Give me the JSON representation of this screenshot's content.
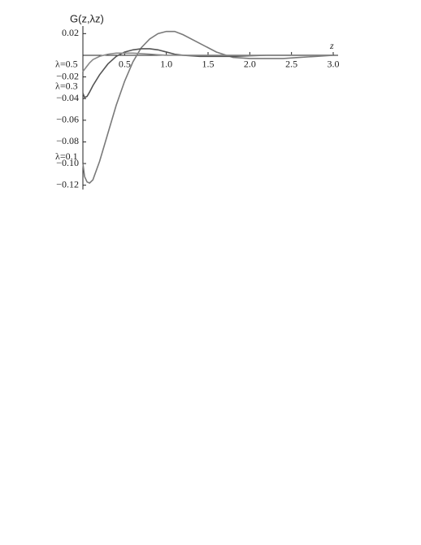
{
  "chart_data": {
    "type": "line",
    "y_label": "G(z,λz)",
    "x_label": "z",
    "x": [
      0,
      0.02,
      0.05,
      0.08,
      0.12,
      0.2,
      0.3,
      0.4,
      0.5,
      0.6,
      0.7,
      0.8,
      0.9,
      1.0,
      1.1,
      1.2,
      1.4,
      1.6,
      1.8,
      2.0,
      2.2,
      2.4,
      2.6,
      2.8,
      3.0
    ],
    "series": [
      {
        "name": "λ=0.1",
        "color": "#7a7a7a",
        "values": [
          -0.1,
          -0.112,
          -0.117,
          -0.118,
          -0.115,
          -0.098,
          -0.072,
          -0.046,
          -0.024,
          -0.006,
          0.007,
          0.015,
          0.02,
          0.022,
          0.022,
          0.019,
          0.011,
          0.003,
          -0.002,
          -0.003,
          -0.003,
          -0.003,
          -0.002,
          -0.001,
          0
        ]
      },
      {
        "name": "λ=0.3",
        "color": "#555555",
        "values": [
          -0.035,
          -0.039,
          -0.038,
          -0.034,
          -0.028,
          -0.018,
          -0.008,
          -0.001,
          0.003,
          0.005,
          0.006,
          0.006,
          0.005,
          0.003,
          0.001,
          0,
          -0.001,
          -0.001,
          -0.001,
          -0.0005,
          0,
          0,
          0,
          0,
          0
        ]
      },
      {
        "name": "λ=0.5",
        "color": "#8a8a8a",
        "values": [
          -0.015,
          -0.013,
          -0.01,
          -0.007,
          -0.004,
          -0.001,
          0.001,
          0.002,
          0.002,
          0.002,
          0.0015,
          0.001,
          0.0005,
          0,
          0,
          0,
          0,
          0,
          0,
          0,
          0,
          0,
          0,
          0,
          0
        ]
      }
    ],
    "xlim": [
      0,
      3
    ],
    "ylim": [
      -0.124,
      0.027
    ],
    "xticks": [
      0.5,
      {
        "value": 1,
        "label": "1.0"
      },
      1.5,
      {
        "value": 2,
        "label": "2.0"
      },
      2.5,
      {
        "value": 3,
        "label": "3.0"
      }
    ],
    "yticks": [
      0.02,
      {
        "value": -0.02,
        "label": "−0.02"
      },
      {
        "value": -0.04,
        "label": "−0.04"
      },
      {
        "value": -0.06,
        "label": "−0.06"
      },
      {
        "value": -0.08,
        "label": "−0.08"
      },
      {
        "value": -0.1,
        "label": "−0.10"
      },
      {
        "value": -0.12,
        "label": "−0.12"
      }
    ]
  }
}
